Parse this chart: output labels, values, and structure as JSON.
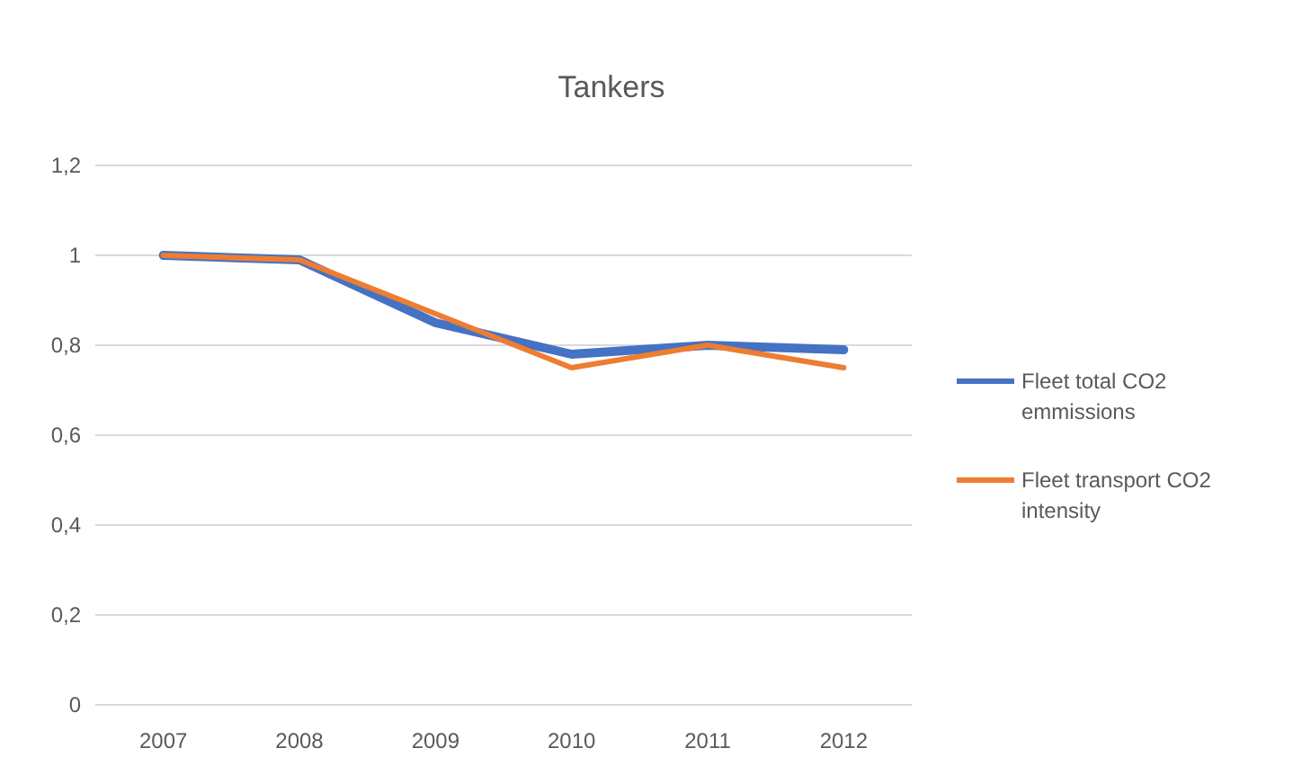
{
  "chart_data": {
    "type": "line",
    "title": "Tankers",
    "categories": [
      "2007",
      "2008",
      "2009",
      "2010",
      "2011",
      "2012"
    ],
    "series": [
      {
        "name": "Fleet total CO2 emmissions",
        "color": "#4472c4",
        "values": [
          1.0,
          0.99,
          0.85,
          0.78,
          0.8,
          0.79
        ]
      },
      {
        "name": "Fleet transport CO2 intensity",
        "color": "#ed7d31",
        "values": [
          1.0,
          0.99,
          0.87,
          0.75,
          0.8,
          0.75
        ]
      }
    ],
    "ylim": [
      0,
      1.2
    ],
    "yticks": [
      0,
      {
        "value": 0.2,
        "label": "0,2"
      },
      {
        "value": 0.4,
        "label": "0,4"
      },
      {
        "value": 0.6,
        "label": "0,6"
      },
      {
        "value": 0.8,
        "label": "0,8"
      },
      1,
      {
        "value": 1.2,
        "label": "1,2"
      }
    ],
    "grid": "y",
    "legend": "right",
    "marker": "none",
    "line_style": "solid"
  }
}
